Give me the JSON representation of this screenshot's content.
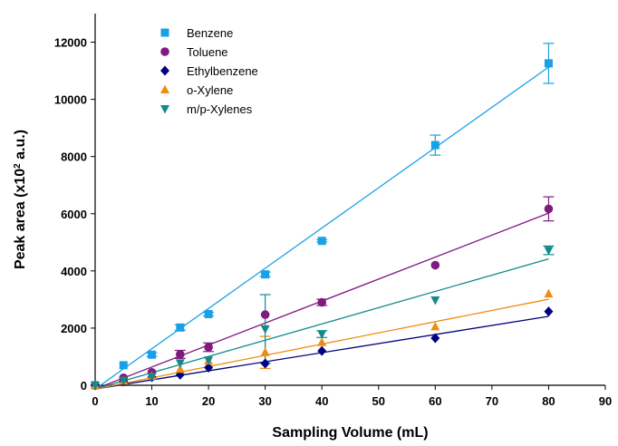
{
  "chart_data": {
    "type": "scatter",
    "title": "",
    "xlabel": "Sampling Volume (mL)",
    "ylabel_prefix": "Peak area (x10",
    "ylabel_sup": "2",
    "ylabel_suffix": " a.u.)",
    "xlim": [
      0,
      90
    ],
    "ylim": [
      0,
      13000
    ],
    "xticks": [
      0,
      10,
      20,
      30,
      40,
      50,
      60,
      70,
      80,
      90
    ],
    "yticks": [
      0,
      2000,
      4000,
      6000,
      8000,
      10000,
      12000
    ],
    "grid": false,
    "legend_position": "top-left",
    "series": [
      {
        "name": "Benzene",
        "color": "#1aa0e6",
        "marker": "square",
        "x": [
          0,
          5,
          10,
          15,
          20,
          30,
          40,
          60,
          80
        ],
        "y": [
          0,
          700,
          1070,
          2020,
          2490,
          3880,
          5050,
          8400,
          11260
        ],
        "err": [
          0,
          0,
          60,
          100,
          60,
          80,
          40,
          350,
          700
        ],
        "fit": {
          "x": [
            0,
            80
          ],
          "y": [
            -130,
            11130
          ]
        }
      },
      {
        "name": "Toluene",
        "color": "#7f1a7f",
        "marker": "circle",
        "x": [
          0,
          5,
          10,
          15,
          20,
          30,
          40,
          60,
          80
        ],
        "y": [
          0,
          260,
          450,
          1080,
          1330,
          2470,
          2900,
          4200,
          6170
        ],
        "err": [
          0,
          0,
          0,
          140,
          150,
          0,
          110,
          0,
          420
        ],
        "fit": {
          "x": [
            0,
            80
          ],
          "y": [
            -130,
            6020
          ]
        }
      },
      {
        "name": "Ethylbenzene",
        "color": "#000080",
        "marker": "diamond",
        "x": [
          0,
          5,
          10,
          15,
          20,
          30,
          40,
          60,
          80
        ],
        "y": [
          0,
          130,
          280,
          370,
          620,
          760,
          1200,
          1650,
          2580
        ],
        "err": [
          0,
          0,
          0,
          0,
          0,
          0,
          0,
          0,
          0
        ],
        "fit": {
          "x": [
            0,
            80
          ],
          "y": [
            -130,
            2410
          ]
        }
      },
      {
        "name": "o-Xylene",
        "color": "#f08c14",
        "marker": "triangle-up",
        "x": [
          0,
          5,
          10,
          15,
          20,
          30,
          40,
          60,
          80
        ],
        "y": [
          0,
          150,
          320,
          560,
          850,
          1150,
          1500,
          2050,
          3200
        ],
        "err": [
          0,
          0,
          0,
          0,
          0,
          560,
          0,
          0,
          0
        ],
        "fit": {
          "x": [
            0,
            80
          ],
          "y": [
            -130,
            3010
          ]
        }
      },
      {
        "name": "m/p-Xylenes",
        "color": "#138a8a",
        "marker": "triangle-down",
        "x": [
          0,
          5,
          10,
          15,
          20,
          30,
          40,
          60,
          80
        ],
        "y": [
          0,
          170,
          300,
          780,
          880,
          1970,
          1790,
          2980,
          4720
        ],
        "err": [
          0,
          0,
          0,
          0,
          0,
          1200,
          120,
          0,
          150
        ],
        "fit": {
          "x": [
            0,
            80
          ],
          "y": [
            -130,
            4420
          ]
        }
      }
    ]
  }
}
